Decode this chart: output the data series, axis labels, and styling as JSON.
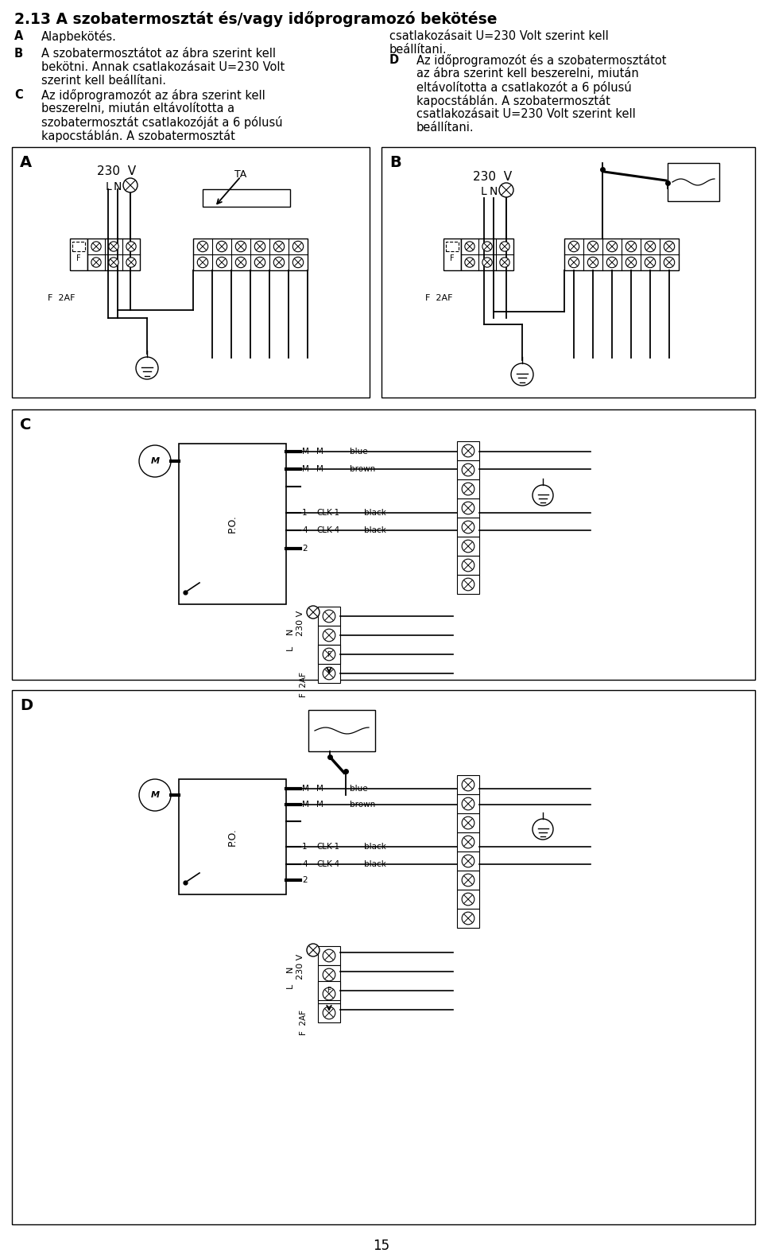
{
  "title": "2.13 A szobatermosztát és/vagy időprogramozó bekötése",
  "label_A": "A",
  "label_B": "B",
  "label_C": "C",
  "label_D": "D",
  "para_A": "Alapbekötés.",
  "para_B1": "A szobatermosztátot az ábra szerint kell",
  "para_B2": "bekötni. Annak csatlakozásait U=230 Volt",
  "para_B3": "szerint kell beállítani.",
  "para_C1": "Az időprogramozót az ábra szerint kell",
  "para_C2": "beszerelni, miután eltávolította a",
  "para_C3": "szobatermosztát csatlakozóját a 6 pólusú",
  "para_C4": "kapocstáblán. A szobatermosztát",
  "para_CR1": "csatlakozásait U=230 Volt szerint kell",
  "para_CR2": "beállítani.",
  "para_D1": "Az időprogramozót és a szobatermosztátot",
  "para_D2": "az ábra szerint kell beszerelni, miután",
  "para_D3": "eltávolította a csatlakozót a 6 pólusú",
  "para_D4": "kapocstáblán. A szobatermosztát",
  "para_D5": "csatlakozásait U=230 Volt szerint kell",
  "para_D6": "beállítani.",
  "page_number": "15",
  "bg_color": "#ffffff",
  "lc": "#000000",
  "tc": "#000000"
}
